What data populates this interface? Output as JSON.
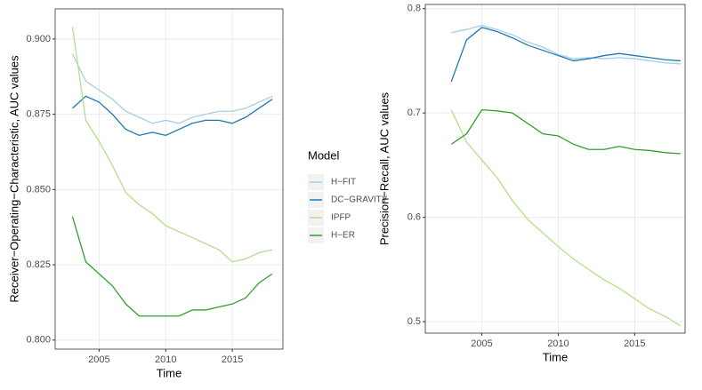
{
  "chart_data": [
    {
      "type": "line",
      "x_label": "Time",
      "y_label": "Receiver−Operating−Characteristic, AUC values",
      "legend_title": "Model",
      "x": [
        2003,
        2004,
        2005,
        2006,
        2007,
        2008,
        2009,
        2010,
        2011,
        2012,
        2013,
        2014,
        2015,
        2016,
        2017,
        2018
      ],
      "xlim": [
        2001.7,
        2018.8
      ],
      "xticks": [
        2005,
        2010,
        2015
      ],
      "ylim": [
        0.797,
        0.91
      ],
      "yticks": [
        {
          "value": 0.8,
          "label": "0.800"
        },
        {
          "value": 0.825,
          "label": "0.825"
        },
        {
          "value": 0.85,
          "label": "0.850"
        },
        {
          "value": 0.875,
          "label": "0.875"
        },
        {
          "value": 0.9,
          "label": "0.900"
        }
      ],
      "grid": true,
      "series": [
        {
          "name": "H−FIT",
          "color": "#a6cee3",
          "values": [
            0.895,
            0.886,
            0.883,
            0.88,
            0.876,
            0.874,
            0.872,
            0.873,
            0.872,
            0.874,
            0.875,
            0.876,
            0.876,
            0.877,
            0.879,
            0.881
          ]
        },
        {
          "name": "DC−GRAVITY",
          "color": "#1f78b4",
          "values": [
            0.877,
            0.881,
            0.879,
            0.875,
            0.87,
            0.868,
            0.869,
            0.868,
            0.87,
            0.872,
            0.873,
            0.873,
            0.872,
            0.874,
            0.877,
            0.88
          ]
        },
        {
          "name": "IPFP",
          "color": "#b2df8a",
          "values": [
            0.904,
            0.873,
            0.866,
            0.858,
            0.849,
            0.845,
            0.842,
            0.838,
            0.836,
            0.834,
            0.832,
            0.83,
            0.826,
            0.827,
            0.829,
            0.83
          ]
        },
        {
          "name": "H−ER",
          "color": "#33a02c",
          "values": [
            0.841,
            0.826,
            0.822,
            0.818,
            0.812,
            0.808,
            0.808,
            0.808,
            0.808,
            0.81,
            0.81,
            0.811,
            0.812,
            0.814,
            0.819,
            0.822
          ]
        }
      ]
    },
    {
      "type": "line",
      "x_label": "Time",
      "y_label": "Precision−Recall, AUC values",
      "x": [
        2003,
        2004,
        2005,
        2006,
        2007,
        2008,
        2009,
        2010,
        2011,
        2012,
        2013,
        2014,
        2015,
        2016,
        2017,
        2018
      ],
      "xlim": [
        2001.3,
        2018.3
      ],
      "xticks": [
        2005,
        2010,
        2015
      ],
      "ylim": [
        0.489,
        0.804
      ],
      "yticks": [
        0.5,
        0.6,
        0.7,
        0.8
      ],
      "grid": true,
      "series": [
        {
          "name": "H−FIT",
          "color": "#a6cee3",
          "values": [
            0.777,
            0.78,
            0.784,
            0.78,
            0.775,
            0.768,
            0.763,
            0.756,
            0.752,
            0.753,
            0.752,
            0.753,
            0.752,
            0.75,
            0.748,
            0.747
          ]
        },
        {
          "name": "DC−GRAVITY",
          "color": "#1f78b4",
          "values": [
            0.73,
            0.77,
            0.782,
            0.778,
            0.772,
            0.765,
            0.76,
            0.755,
            0.75,
            0.752,
            0.755,
            0.757,
            0.755,
            0.753,
            0.751,
            0.75
          ]
        },
        {
          "name": "IPFP",
          "color": "#b2df8a",
          "values": [
            0.703,
            0.672,
            0.655,
            0.638,
            0.616,
            0.598,
            0.585,
            0.572,
            0.56,
            0.55,
            0.54,
            0.532,
            0.522,
            0.512,
            0.505,
            0.496
          ]
        },
        {
          "name": "H−ER",
          "color": "#33a02c",
          "values": [
            0.67,
            0.68,
            0.703,
            0.702,
            0.7,
            0.69,
            0.68,
            0.678,
            0.67,
            0.665,
            0.665,
            0.668,
            0.665,
            0.664,
            0.662,
            0.661
          ]
        }
      ]
    }
  ]
}
